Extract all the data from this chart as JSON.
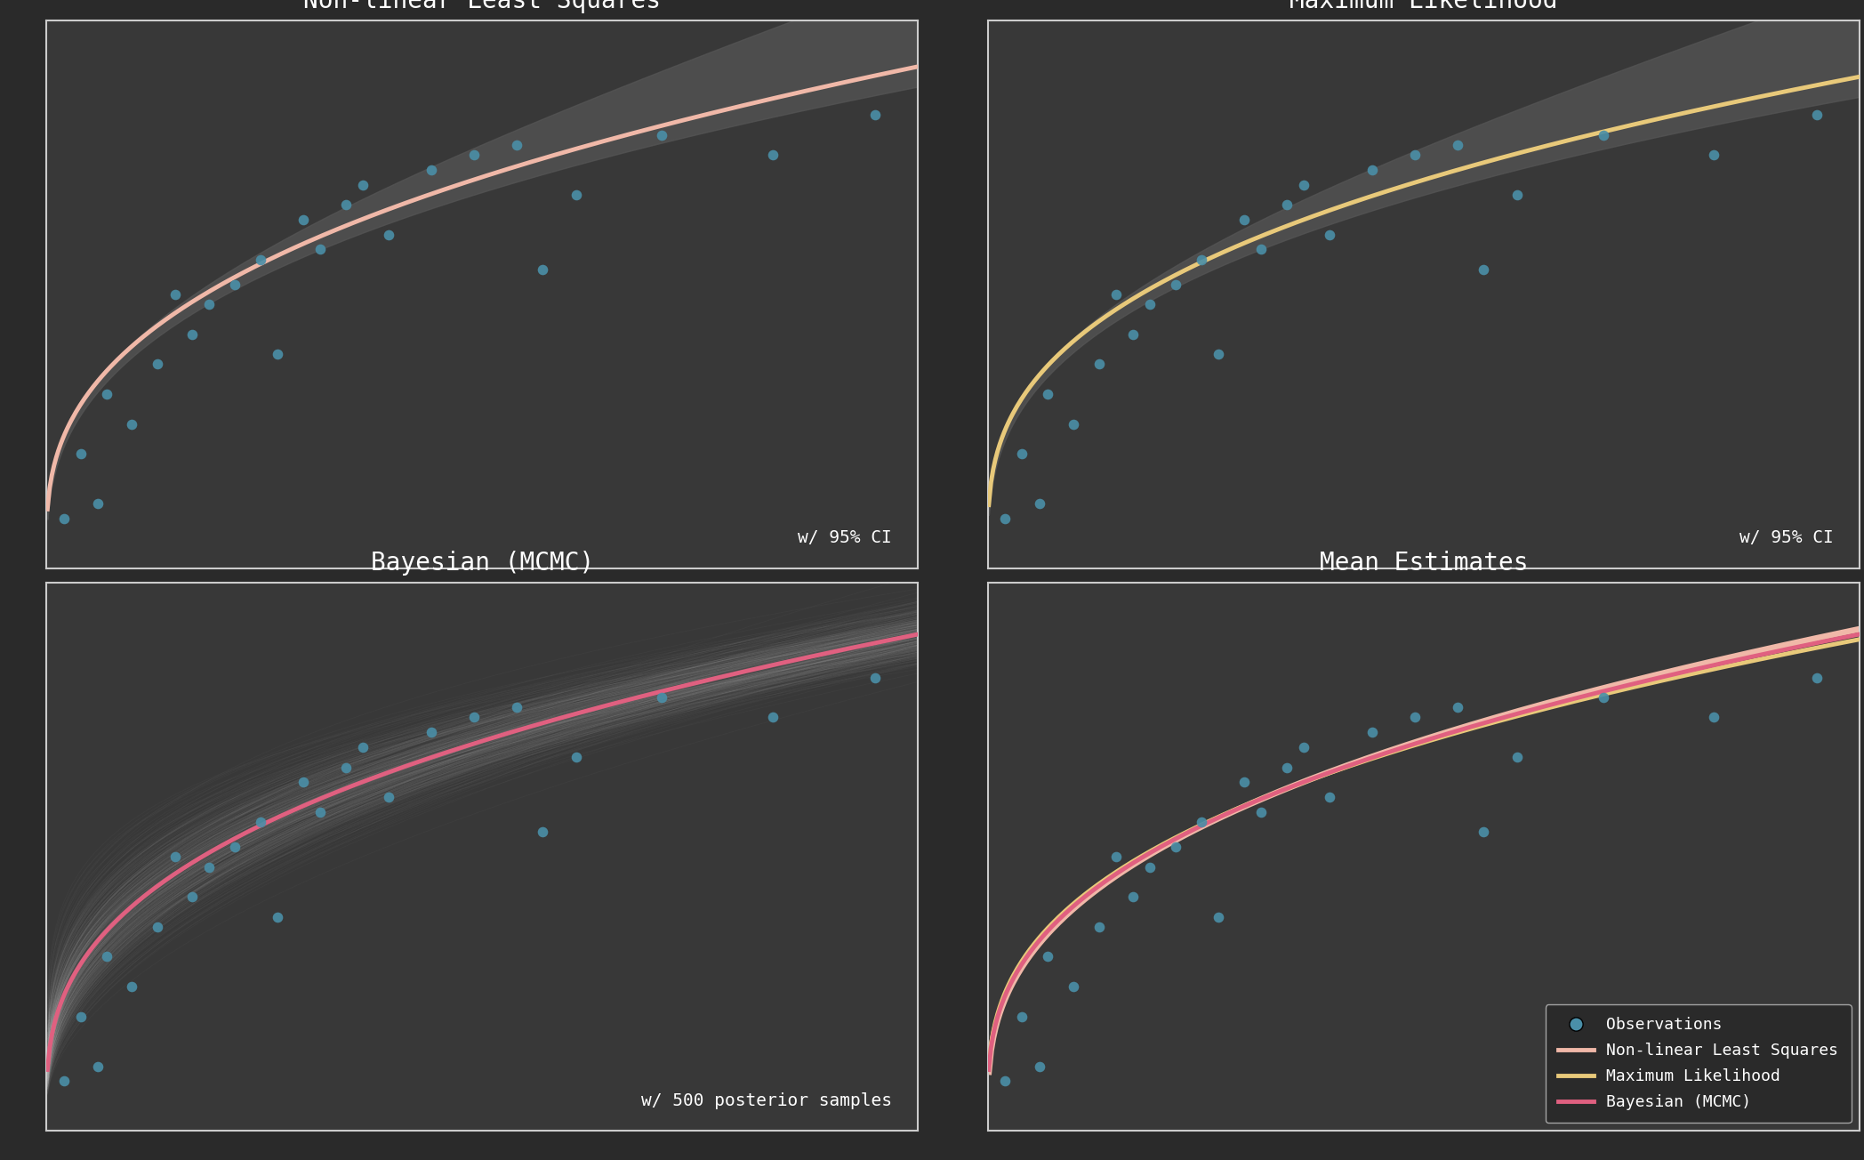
{
  "bg_color": "#2a2a2a",
  "panel_bg": "#383838",
  "border_color": "#cccccc",
  "text_color": "#ffffff",
  "dot_color": "#4a8fa8",
  "nls_color": "#f0b8a8",
  "ml_color": "#e8c97a",
  "bayes_color": "#e06080",
  "ci_fill_color": "#555555",
  "titles": [
    "Non-linear Least Squares",
    "Maximum Likelihood",
    "Bayesian (MCMC)",
    "Mean Estimates"
  ],
  "annotations": [
    "w/ 95% CI",
    "w/ 95% CI",
    "w/ 500 posterior samples",
    ""
  ],
  "x_data": [
    0.02,
    0.04,
    0.06,
    0.07,
    0.1,
    0.13,
    0.15,
    0.17,
    0.19,
    0.22,
    0.25,
    0.27,
    0.3,
    0.32,
    0.35,
    0.37,
    0.4,
    0.45,
    0.5,
    0.55,
    0.58,
    0.62,
    0.72,
    0.85,
    0.97
  ],
  "y_data": [
    0.05,
    0.18,
    0.08,
    0.3,
    0.24,
    0.36,
    0.5,
    0.42,
    0.48,
    0.52,
    0.57,
    0.38,
    0.65,
    0.59,
    0.68,
    0.72,
    0.62,
    0.75,
    0.78,
    0.8,
    0.55,
    0.7,
    0.82,
    0.78,
    0.86
  ],
  "x_range": [
    0.0,
    1.02
  ],
  "y_range": [
    -0.05,
    1.05
  ],
  "legend_items": [
    "Observations",
    "Non-linear Least Squares",
    "Maximum Likelihood",
    "Bayesian (MCMC)"
  ]
}
